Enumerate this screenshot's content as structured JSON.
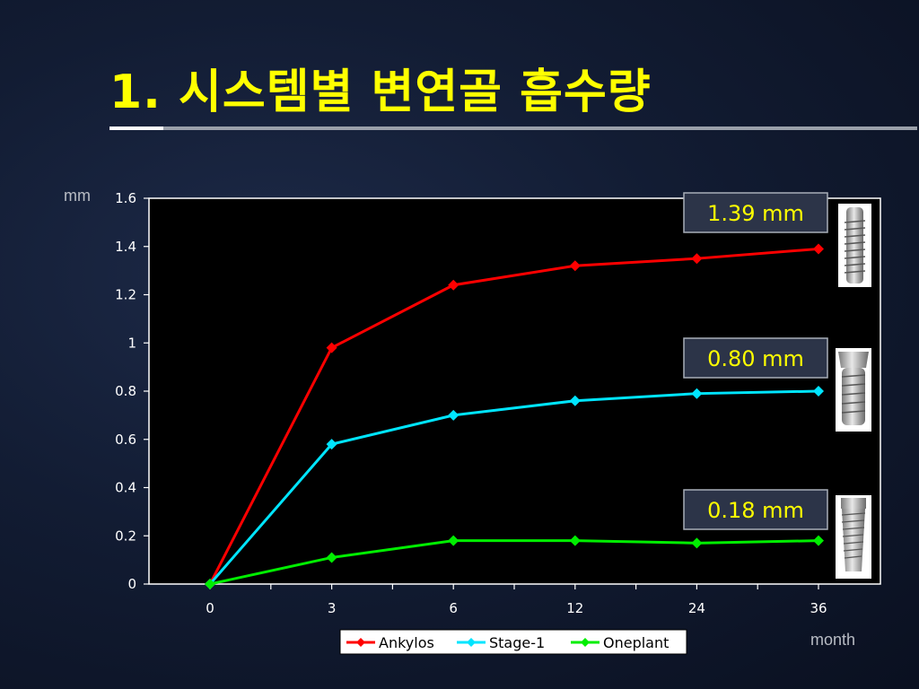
{
  "title": "1. 시스템별 변연골 흡수량",
  "chart_data": {
    "type": "line",
    "title": "",
    "xlabel": "month",
    "ylabel": "mm",
    "categories": [
      "0",
      "3",
      "6",
      "12",
      "24",
      "36"
    ],
    "yticks": [
      "0",
      "0.2",
      "0.4",
      "0.6",
      "0.8",
      "1",
      "1.2",
      "1.4",
      "1.6"
    ],
    "ylim": [
      0,
      1.6
    ],
    "grid": false,
    "legend_position": "bottom",
    "series": [
      {
        "name": "Ankylos",
        "values": [
          0,
          0.98,
          1.24,
          1.32,
          1.35,
          1.39
        ],
        "color": "#ff0000"
      },
      {
        "name": "Stage-1",
        "values": [
          0,
          0.58,
          0.7,
          0.76,
          0.79,
          0.8
        ],
        "color": "#00e5ff"
      },
      {
        "name": "Oneplant",
        "values": [
          0,
          0.11,
          0.18,
          0.18,
          0.17,
          0.18
        ],
        "color": "#00ee00"
      }
    ],
    "annotations": [
      "1.39 mm",
      "0.80 mm",
      "0.18 mm"
    ]
  }
}
